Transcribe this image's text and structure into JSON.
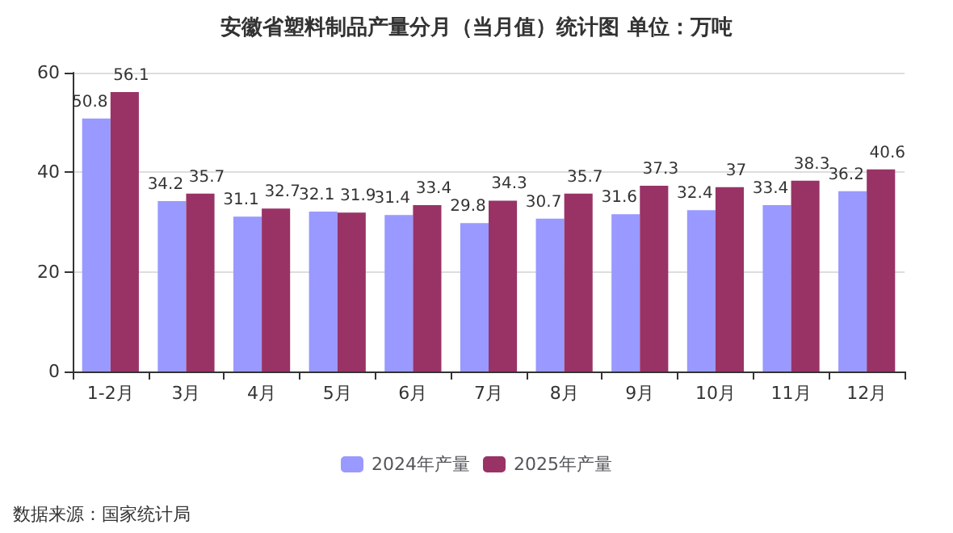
{
  "chart_data": {
    "type": "bar",
    "title": "安徽省塑料制品产量分月（当月值）统计图 单位：万吨",
    "categories": [
      "1-2月",
      "3月",
      "4月",
      "5月",
      "6月",
      "7月",
      "8月",
      "9月",
      "10月",
      "11月",
      "12月"
    ],
    "series": [
      {
        "name": "2024年产量",
        "color": "#9999ff",
        "values": [
          50.8,
          34.2,
          31.1,
          32.1,
          31.4,
          29.8,
          30.7,
          31.6,
          32.4,
          33.4,
          36.2
        ]
      },
      {
        "name": "2025年产量",
        "color": "#993366",
        "values": [
          56.1,
          35.7,
          32.7,
          31.9,
          33.4,
          34.3,
          35.7,
          37.3,
          37,
          38.3,
          40.6
        ]
      }
    ],
    "ylim": [
      0,
      60
    ],
    "yticks": [
      0,
      20,
      40,
      60
    ],
    "grid": "y",
    "legend": "bottom",
    "data_labels": true,
    "annotations": [
      "数据来源：国家统计局"
    ]
  }
}
